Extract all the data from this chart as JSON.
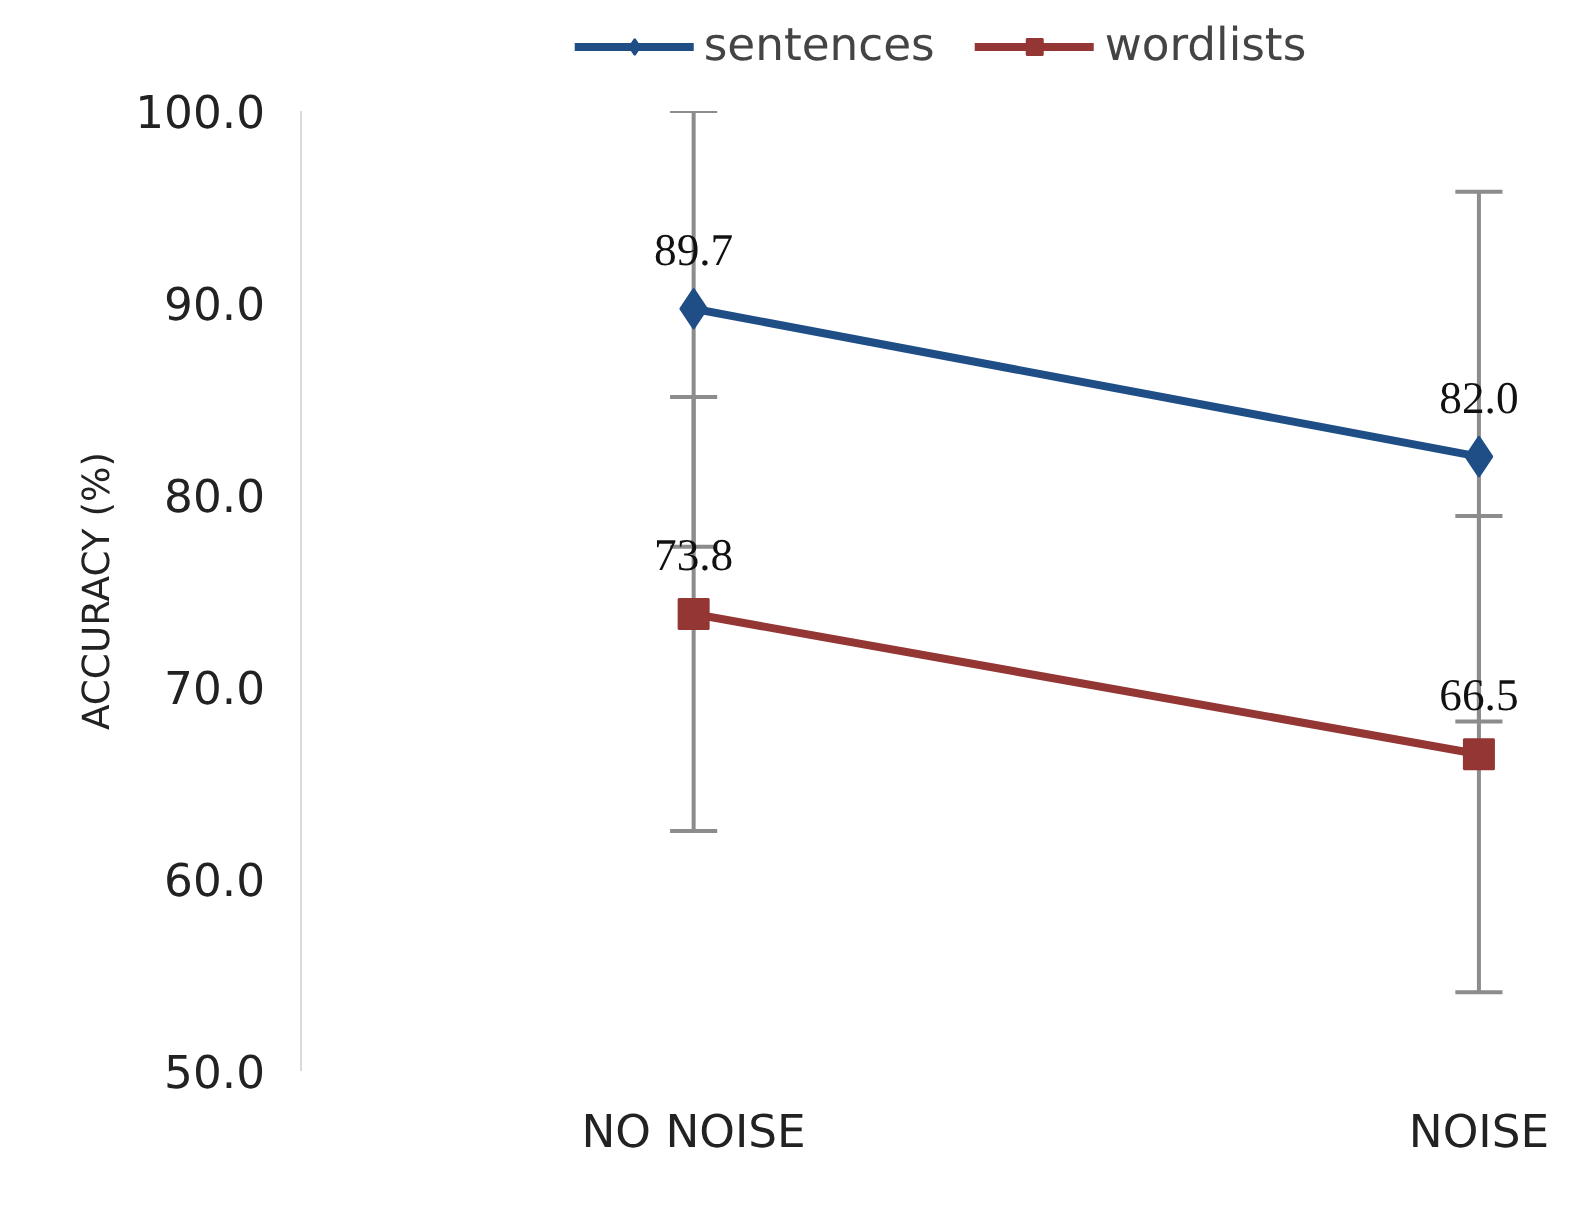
{
  "chart_data": {
    "type": "line",
    "ylabel": "ACCURACY (%)",
    "categories": [
      "NO NOISE",
      "NOISE"
    ],
    "series": [
      {
        "name": "sentences",
        "color": "#1f4e87",
        "marker": "diamond",
        "values": [
          89.7,
          82.0
        ],
        "value_labels": [
          "89.7",
          "82.0"
        ],
        "errors": [
          [
            77.3,
            100.0
          ],
          [
            68.2,
            95.8
          ]
        ]
      },
      {
        "name": "wordlists",
        "color": "#943634",
        "marker": "square",
        "values": [
          73.8,
          66.5
        ],
        "value_labels": [
          "73.8",
          "66.5"
        ],
        "errors": [
          [
            62.5,
            85.1
          ],
          [
            54.1,
            78.9
          ]
        ]
      }
    ],
    "ylim": [
      50,
      100
    ],
    "yticks": [
      {
        "value": 50,
        "label": "50.0"
      },
      {
        "value": 60,
        "label": "60.0"
      },
      {
        "value": 70,
        "label": "70.0"
      },
      {
        "value": 80,
        "label": "80.0"
      },
      {
        "value": 90,
        "label": "90.0"
      },
      {
        "value": 100,
        "label": "100.0"
      }
    ],
    "grid": false,
    "legend": "top",
    "line_style": "solid"
  }
}
